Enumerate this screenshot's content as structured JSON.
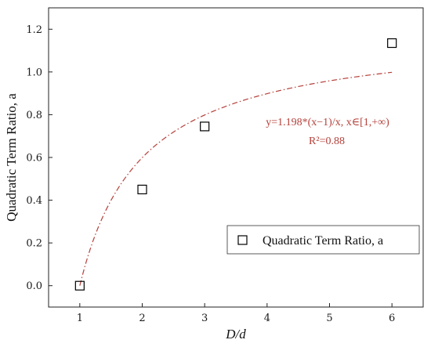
{
  "chart_data": {
    "type": "scatter",
    "xlabel": "D/d",
    "ylabel": "Quadratic Term Ratio, a",
    "xlim": [
      0.5,
      6.5
    ],
    "ylim": [
      -0.1,
      1.3
    ],
    "xticks": [
      1,
      2,
      3,
      4,
      5,
      6
    ],
    "yticks": [
      0.0,
      0.2,
      0.4,
      0.6,
      0.8,
      1.0,
      1.2
    ],
    "xtick_labels": [
      "1",
      "2",
      "3",
      "4",
      "5",
      "6"
    ],
    "ytick_labels": [
      "0.0",
      "0.2",
      "0.4",
      "0.6",
      "0.8",
      "1.0",
      "1.2"
    ],
    "grid": false,
    "legend_position": "bottom-right",
    "series": [
      {
        "name": "Quadratic Term Ratio, a",
        "marker": "open-square",
        "color": "#000000",
        "x": [
          1,
          2,
          3,
          6
        ],
        "y": [
          0.0,
          0.45,
          0.745,
          1.135
        ]
      }
    ],
    "fit": {
      "style": "dash-dot",
      "color": "#b5403a",
      "coefficient": 1.198,
      "x_range": [
        1,
        6
      ],
      "equation_text": "y=1.198*(x−1)/x, x∈[1,+∞)",
      "r2_text": "R²=0.88"
    }
  }
}
